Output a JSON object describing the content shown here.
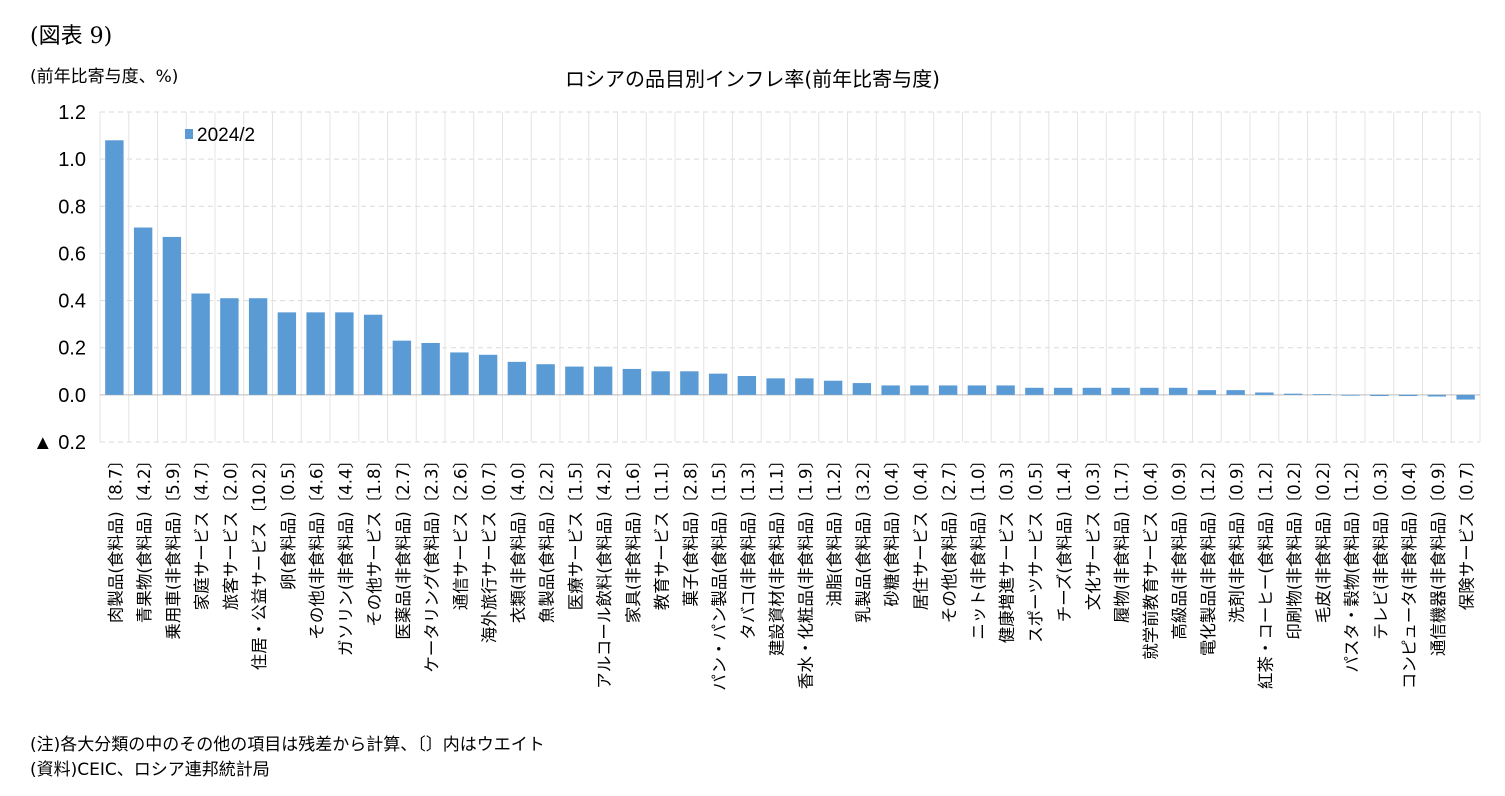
{
  "figure_label": "(図表 9)",
  "notes": {
    "note": "(注)各大分類の中のその他の項目は残差から計算、〔〕内はウエイト",
    "source": "(資料)CEIC、ロシア連邦統計局"
  },
  "chart_data": {
    "type": "bar",
    "title": "ロシアの品目別インフレ率(前年比寄与度)",
    "ylabel": "(前年比寄与度、%)",
    "ylim": [
      -0.2,
      1.2
    ],
    "yticks": [
      {
        "value": 1.2,
        "label": "1.2"
      },
      {
        "value": 1.0,
        "label": "1.0"
      },
      {
        "value": 0.8,
        "label": "0.8"
      },
      {
        "value": 0.6,
        "label": "0.6"
      },
      {
        "value": 0.4,
        "label": "0.4"
      },
      {
        "value": 0.2,
        "label": "0.2"
      },
      {
        "value": 0.0,
        "label": "0.0"
      },
      {
        "value": -0.2,
        "label": "▲ 0.2"
      }
    ],
    "grid": true,
    "legend_position": "top-left",
    "bar_color": "#5b9bd5",
    "series": [
      {
        "name": "2024/2"
      }
    ],
    "categories": [
      "肉製品(食料品)〔8.7〕",
      "青果物(食料品)〔4.2〕",
      "乗用車(非食料品)〔5.9〕",
      "家庭サービス〔4.7〕",
      "旅客サービス〔2.0〕",
      "住居・公益サービス〔10.2〕",
      "卵(食料品)〔0.5〕",
      "その他(非食料品)〔4.6〕",
      "ガソリン(非食料品)〔4.4〕",
      "その他サービス〔1.8〕",
      "医薬品(非食料品)〔2.7〕",
      "ケータリング(食料品)〔2.3〕",
      "通信サービス〔2.6〕",
      "海外旅行サービス〔0.7〕",
      "衣類(非食料品)〔4.0〕",
      "魚製品(食料品)〔2.2〕",
      "医療サービス〔1.5〕",
      "アルコール飲料(食料品)〔4.2〕",
      "家具(非食料品)〔1.6〕",
      "教育サービス〔1.1〕",
      "菓子(食料品)〔2.8〕",
      "パン・パン製品(食料品)〔1.5〕",
      "タバコ(非食料品)〔1.3〕",
      "建設資材(非食料品)〔1.1〕",
      "香水・化粧品(非食料品)〔1.9〕",
      "油脂(食料品)〔1.2〕",
      "乳製品(食料品)〔3.2〕",
      "砂糖(食料品)〔0.4〕",
      "居住サービス〔0.4〕",
      "その他(食料品)〔2.7〕",
      "ニット(非食料品)〔1.0〕",
      "健康増進サービス〔0.3〕",
      "スポーツサービス〔0.5〕",
      "チーズ(食料品)〔1.4〕",
      "文化サービス〔0.3〕",
      "履物(非食料品)〔1.7〕",
      "就学前教育サービス〔0.4〕",
      "高級品(非食料品)〔0.9〕",
      "電化製品(非食料品)〔1.2〕",
      "洗剤(非食料品)〔0.9〕",
      "紅茶・コーヒー(食料品)〔1.2〕",
      "印刷物(非食料品)〔0.2〕",
      "毛皮(非食料品)〔0.2〕",
      "パスタ・穀物(食料品)〔1.2〕",
      "テレビ(非食料品)〔0.3〕",
      "コンピュータ(非食料品)〔0.4〕",
      "通信機器(非食料品)〔0.9〕",
      "保険サービス〔0.7〕"
    ],
    "values": [
      1.08,
      0.71,
      0.67,
      0.43,
      0.41,
      0.41,
      0.35,
      0.35,
      0.35,
      0.34,
      0.23,
      0.22,
      0.18,
      0.17,
      0.14,
      0.13,
      0.12,
      0.12,
      0.11,
      0.1,
      0.1,
      0.09,
      0.08,
      0.07,
      0.07,
      0.06,
      0.05,
      0.04,
      0.04,
      0.04,
      0.04,
      0.04,
      0.03,
      0.03,
      0.03,
      0.03,
      0.03,
      0.03,
      0.02,
      0.02,
      0.01,
      0.005,
      0.003,
      -0.002,
      -0.005,
      -0.005,
      -0.007,
      -0.02
    ]
  }
}
